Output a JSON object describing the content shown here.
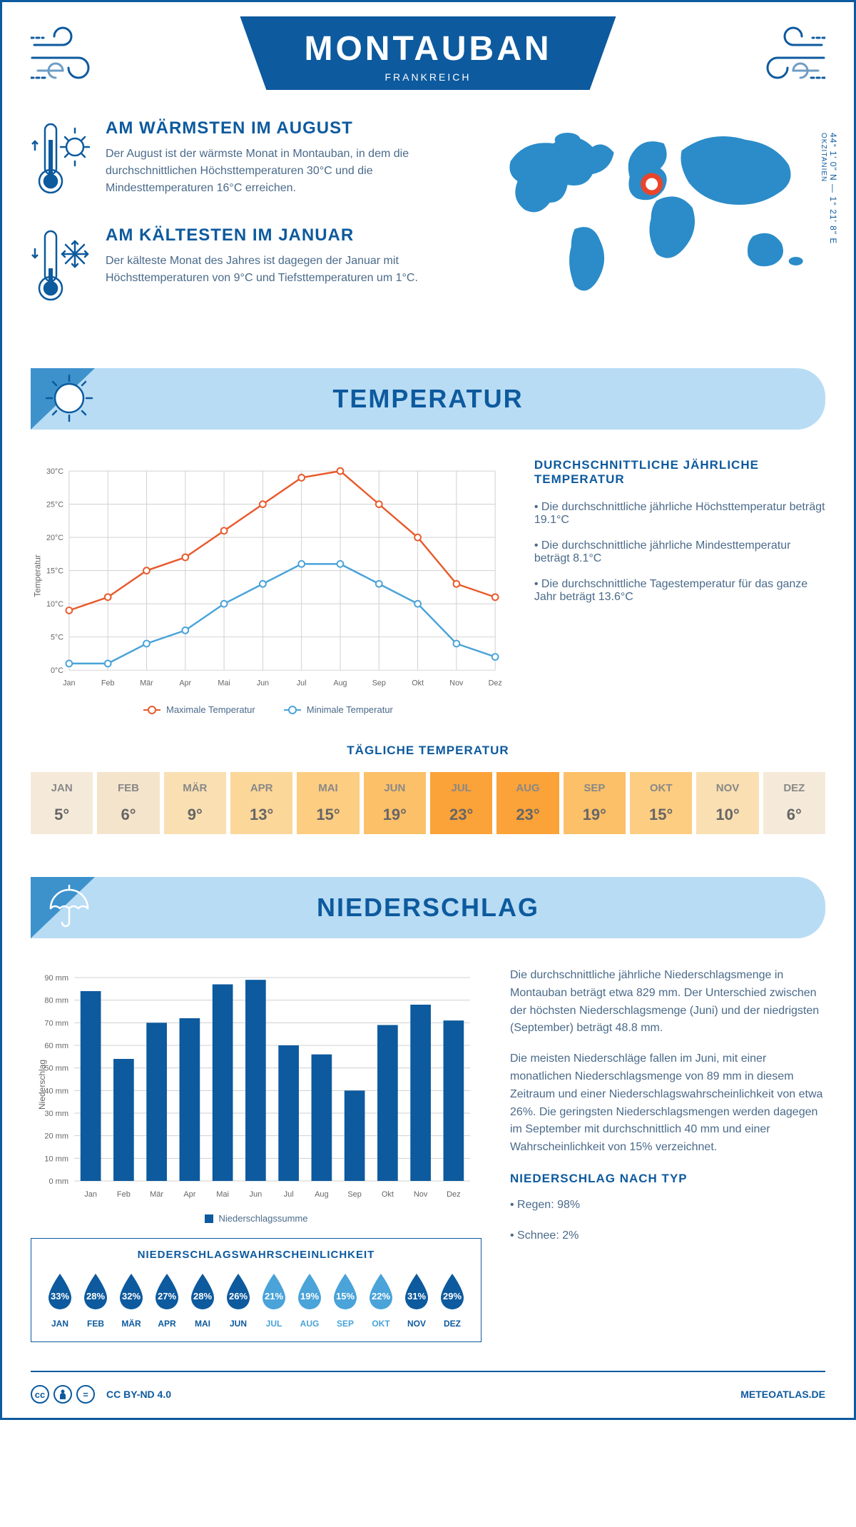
{
  "header": {
    "title": "MONTAUBAN",
    "subtitle": "FRANKREICH",
    "coordinates": "44° 1' 0\" N — 1° 21' 8\" E",
    "region": "OKZITANIEN"
  },
  "facts": {
    "warmest": {
      "title": "AM WÄRMSTEN IM AUGUST",
      "text": "Der August ist der wärmste Monat in Montauban, in dem die durchschnittlichen Höchsttemperaturen 30°C und die Mindesttemperaturen 16°C erreichen."
    },
    "coldest": {
      "title": "AM KÄLTESTEN IM JANUAR",
      "text": "Der kälteste Monat des Jahres ist dagegen der Januar mit Höchsttemperaturen von 9°C und Tiefsttemperaturen um 1°C."
    }
  },
  "sections": {
    "temperature": "TEMPERATUR",
    "precipitation": "NIEDERSCHLAG"
  },
  "temp_chart": {
    "months": [
      "Jan",
      "Feb",
      "Mär",
      "Apr",
      "Mai",
      "Jun",
      "Jul",
      "Aug",
      "Sep",
      "Okt",
      "Nov",
      "Dez"
    ],
    "max": [
      9,
      11,
      15,
      17,
      21,
      25,
      29,
      30,
      25,
      20,
      13,
      11
    ],
    "min": [
      1,
      1,
      4,
      6,
      10,
      13,
      16,
      16,
      13,
      10,
      4,
      2
    ],
    "y_ticks": [
      0,
      5,
      10,
      15,
      20,
      25,
      30
    ],
    "y_tick_labels": [
      "0°C",
      "5°C",
      "10°C",
      "15°C",
      "20°C",
      "25°C",
      "30°C"
    ],
    "y_axis_title": "Temperatur",
    "max_color": "#e85a2c",
    "min_color": "#4aa3d9",
    "grid_color": "#d0d0d0",
    "legend_max": "Maximale Temperatur",
    "legend_min": "Minimale Temperatur"
  },
  "temp_text": {
    "heading": "DURCHSCHNITTLICHE JÄHRLICHE TEMPERATUR",
    "bullet1": "• Die durchschnittliche jährliche Höchsttemperatur beträgt 19.1°C",
    "bullet2": "• Die durchschnittliche jährliche Mindesttemperatur beträgt 8.1°C",
    "bullet3": "• Die durchschnittliche Tagestemperatur für das ganze Jahr beträgt 13.6°C"
  },
  "daily_temp": {
    "heading": "TÄGLICHE TEMPERATUR",
    "months": [
      "JAN",
      "FEB",
      "MÄR",
      "APR",
      "MAI",
      "JUN",
      "JUL",
      "AUG",
      "SEP",
      "OKT",
      "NOV",
      "DEZ"
    ],
    "values": [
      "5°",
      "6°",
      "9°",
      "13°",
      "15°",
      "19°",
      "23°",
      "23°",
      "19°",
      "15°",
      "10°",
      "6°"
    ],
    "colors": [
      "#f5ead9",
      "#f5e4cc",
      "#f9dfb2",
      "#fcd79a",
      "#fdcd82",
      "#fcc069",
      "#fba238",
      "#fba238",
      "#fcc069",
      "#fdcd82",
      "#f9dfb2",
      "#f5ead9"
    ]
  },
  "precip_chart": {
    "months": [
      "Jan",
      "Feb",
      "Mär",
      "Apr",
      "Mai",
      "Jun",
      "Jul",
      "Aug",
      "Sep",
      "Okt",
      "Nov",
      "Dez"
    ],
    "values": [
      84,
      54,
      70,
      72,
      87,
      89,
      60,
      56,
      40,
      69,
      78,
      71
    ],
    "y_ticks": [
      0,
      10,
      20,
      30,
      40,
      50,
      60,
      70,
      80,
      90
    ],
    "y_axis_title": "Niederschlag",
    "bar_color": "#0d5a9e",
    "grid_color": "#d0d0d0",
    "legend": "Niederschlagssumme"
  },
  "precip_text": {
    "para1": "Die durchschnittliche jährliche Niederschlagsmenge in Montauban beträgt etwa 829 mm. Der Unterschied zwischen der höchsten Niederschlagsmenge (Juni) und der niedrigsten (September) beträgt 48.8 mm.",
    "para2": "Die meisten Niederschläge fallen im Juni, mit einer monatlichen Niederschlagsmenge von 89 mm in diesem Zeitraum und einer Niederschlagswahrscheinlichkeit von etwa 26%. Die geringsten Niederschlagsmengen werden dagegen im September mit durchschnittlich 40 mm und einer Wahrscheinlichkeit von 15% verzeichnet.",
    "type_heading": "NIEDERSCHLAG NACH TYP",
    "type_rain": "• Regen: 98%",
    "type_snow": "• Schnee: 2%"
  },
  "prob": {
    "heading": "NIEDERSCHLAGSWAHRSCHEINLICHKEIT",
    "months": [
      "JAN",
      "FEB",
      "MÄR",
      "APR",
      "MAI",
      "JUN",
      "JUL",
      "AUG",
      "SEP",
      "OKT",
      "NOV",
      "DEZ"
    ],
    "values": [
      "33%",
      "28%",
      "32%",
      "27%",
      "28%",
      "26%",
      "21%",
      "19%",
      "15%",
      "22%",
      "31%",
      "29%"
    ],
    "colors": [
      "#0d5a9e",
      "#0d5a9e",
      "#0d5a9e",
      "#0d5a9e",
      "#0d5a9e",
      "#0d5a9e",
      "#4aa3d9",
      "#4aa3d9",
      "#4aa3d9",
      "#4aa3d9",
      "#0d5a9e",
      "#0d5a9e"
    ],
    "label_colors": [
      "#0d5a9e",
      "#0d5a9e",
      "#0d5a9e",
      "#0d5a9e",
      "#0d5a9e",
      "#0d5a9e",
      "#4aa3d9",
      "#4aa3d9",
      "#4aa3d9",
      "#4aa3d9",
      "#0d5a9e",
      "#0d5a9e"
    ]
  },
  "footer": {
    "license": "CC BY-ND 4.0",
    "site": "METEOATLAS.DE"
  },
  "colors": {
    "brand": "#0d5a9e",
    "light_blue": "#b8dcf4",
    "mid_blue": "#3d92cc",
    "map_blue": "#2b8cc9"
  }
}
